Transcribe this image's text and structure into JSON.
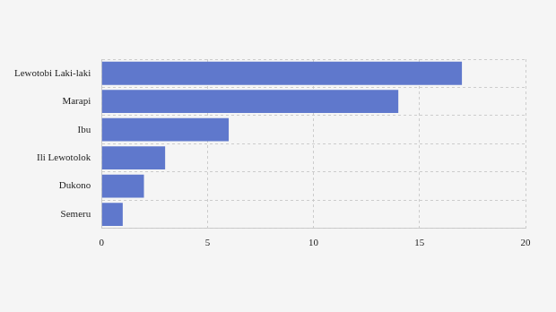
{
  "chart_data": {
    "type": "bar",
    "orientation": "horizontal",
    "categories": [
      "Lewotobi Laki-laki",
      "Marapi",
      "Ibu",
      "Ili Lewotolok",
      "Dukono",
      "Semeru"
    ],
    "values": [
      17,
      14,
      6,
      3,
      2,
      1
    ],
    "color": "#5f78cc",
    "xlim": [
      0,
      20
    ],
    "xticks": [
      0,
      5,
      10,
      15,
      20
    ],
    "grid": true
  }
}
